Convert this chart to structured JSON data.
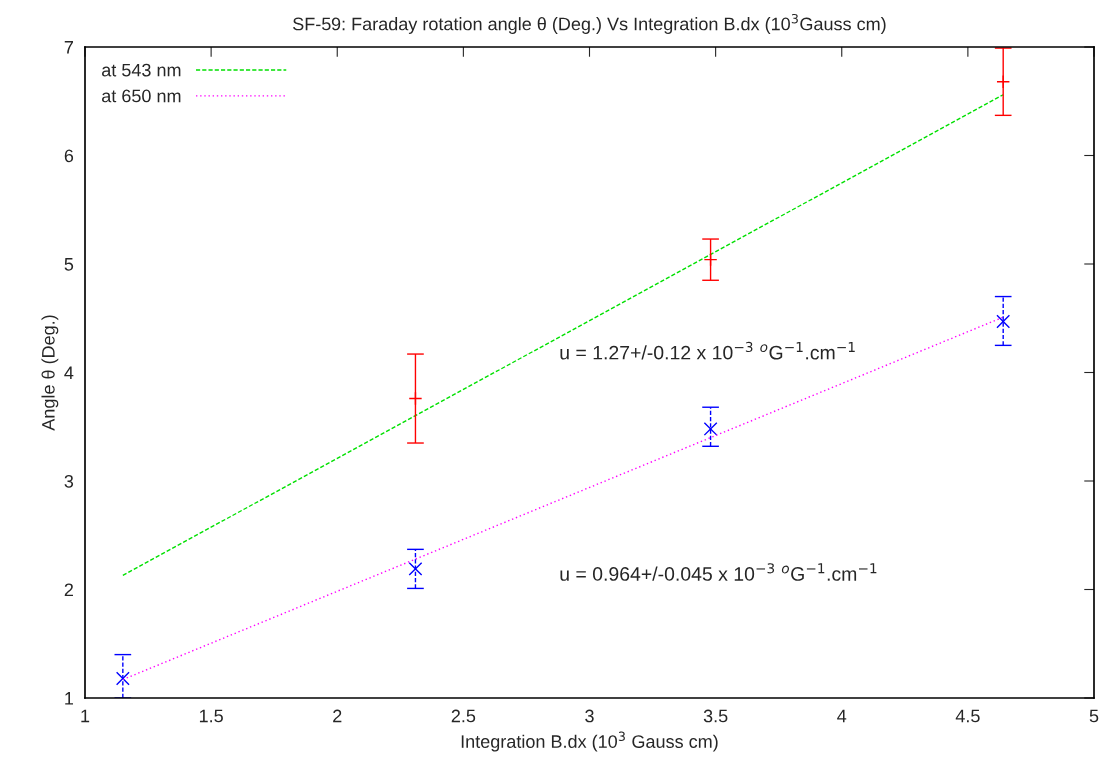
{
  "chart_data": {
    "type": "scatter",
    "title": "SF-59: Faraday rotation angle θ (Deg.) Vs Integration B.dx (10$^{3}$Gauss cm)",
    "xlabel": "Integration B.dx (10$^{3}$ Gauss cm)",
    "ylabel": "Angle θ (Deg.)",
    "xlim": [
      1,
      5
    ],
    "xticks": [
      1,
      1.5,
      2,
      2.5,
      3,
      3.5,
      4,
      4.5,
      5
    ],
    "ylim": [
      1,
      7
    ],
    "yticks": [
      1,
      2,
      3,
      4,
      5,
      6,
      7
    ],
    "grid": false,
    "legend": "top left",
    "series": [
      {
        "name": "at 543 nm",
        "type": "line",
        "color": "#00e000",
        "line_style": "dashed",
        "marker": "none",
        "x": [
          1.15,
          4.64
        ],
        "values": [
          2.13,
          6.56
        ]
      },
      {
        "name": "at 650 nm",
        "type": "line",
        "color": "#ff00ff",
        "line_style": "dotted",
        "marker": "none",
        "x": [
          1.15,
          4.64
        ],
        "values": [
          1.17,
          4.51
        ]
      },
      {
        "color": "#ff0000",
        "marker": "cross",
        "line_style": "solid",
        "x": [
          2.31,
          3.48,
          4.64
        ],
        "values": [
          3.76,
          5.04,
          6.68
        ],
        "errors": [
          [
            3.35,
            4.17
          ],
          [
            4.85,
            5.23
          ],
          [
            6.37,
            6.99
          ]
        ]
      },
      {
        "color": "#0000ff",
        "marker": "x",
        "line_style": "dashed",
        "x": [
          1.15,
          2.31,
          3.48,
          4.64
        ],
        "values": [
          1.18,
          2.19,
          3.48,
          4.47
        ],
        "errors": [
          [
            1.0,
            1.4
          ],
          [
            2.01,
            2.37
          ],
          [
            3.32,
            3.68
          ],
          [
            4.25,
            4.7
          ]
        ]
      }
    ],
    "annotations": [
      "u = 1.27+/-0.12 x 10$^{−3}$ $^{o}$G$^{−1}$.cm$^{−1}$",
      "u = 0.964+/-0.045 x 10$^{−3}$ $^{o}$G$^{−1}$.cm$^{−1}$"
    ]
  }
}
